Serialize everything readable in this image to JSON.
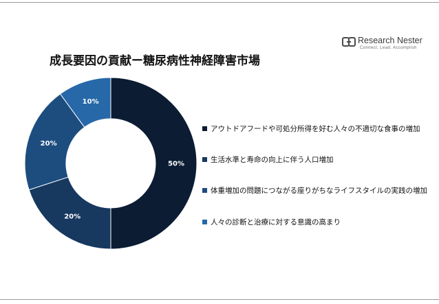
{
  "title": "成長要因の貢献ー糖尿病性神経障害市場",
  "logo": {
    "name": "Research Nester",
    "tagline": "Connect. Lead. Accomplish",
    "icon": "research-nester-logo-mark"
  },
  "colors": {
    "series": [
      "#0b1c33",
      "#17385f",
      "#1d4d7f",
      "#2768a8"
    ],
    "label": "#ffffff",
    "rule": "#9a9a9a"
  },
  "chart_data": {
    "type": "pie",
    "style": "donut",
    "start": "12 o'clock, clockwise",
    "title": "成長要因の貢献ー糖尿病性神経障害市場",
    "categories": [
      "アウトドアフードや可処分所得を好む人々の不適切な食事の増加",
      "生活水準と寿命の向上に伴う人口増加",
      "体重増加の問題につながる座りがちなライフスタイルの実践の増加",
      "人々の診断と治療に対する意識の高まり"
    ],
    "values": [
      50,
      20,
      20,
      10
    ],
    "labels": [
      "50%",
      "20%",
      "20%",
      "10%"
    ],
    "legend": "right"
  }
}
